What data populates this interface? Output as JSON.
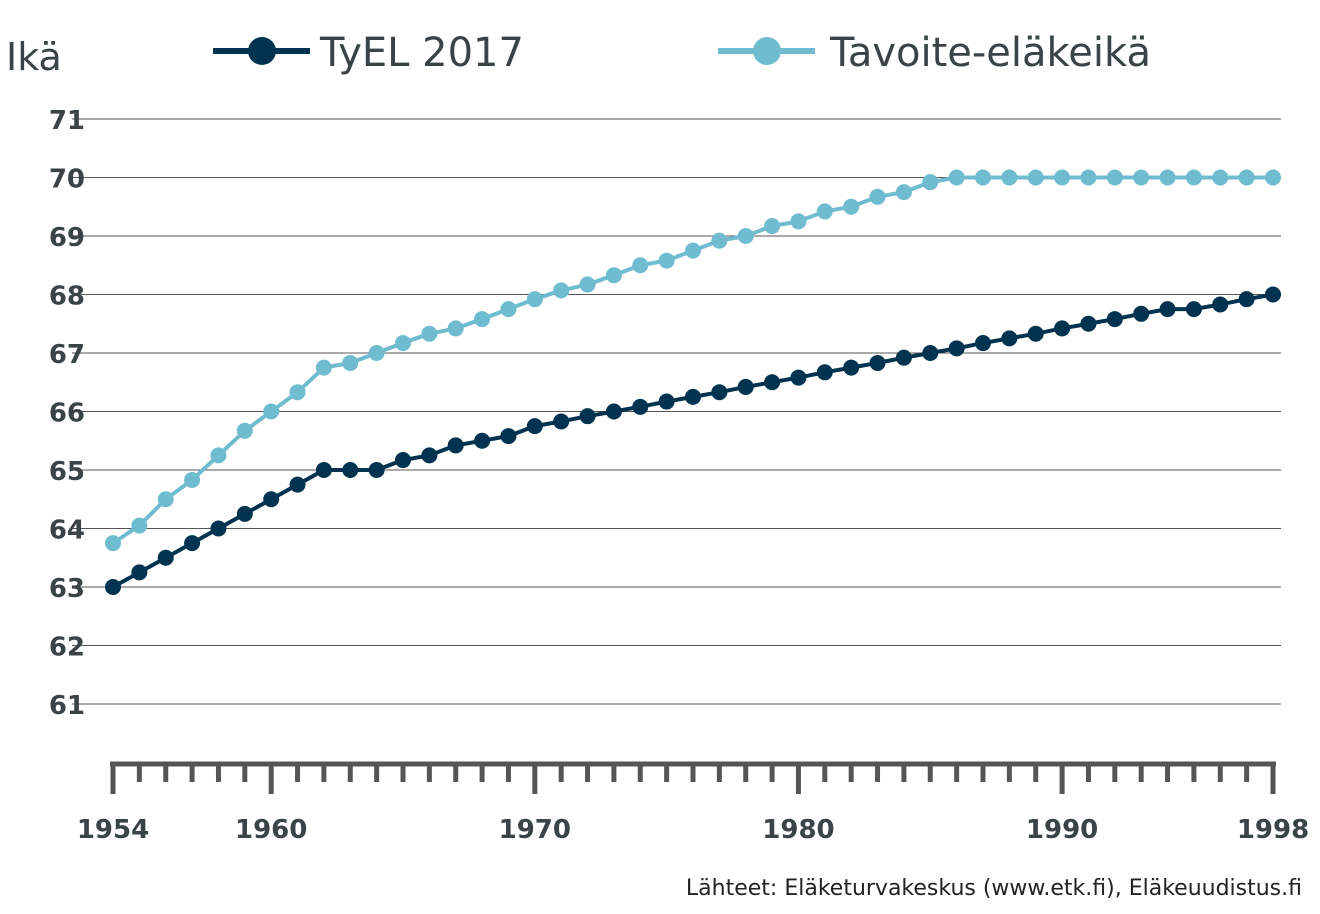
{
  "chart_data": {
    "type": "line",
    "ylabel": "Ikä",
    "ylim": [
      61,
      71
    ],
    "yticks": [
      "61",
      "62",
      "63",
      "64",
      "65",
      "66",
      "67",
      "68",
      "69",
      "70",
      "71"
    ],
    "xlim": [
      1954,
      1998
    ],
    "xticks": [
      "1954",
      "1960",
      "1970",
      "1980",
      "1990",
      "1998"
    ],
    "grid": true,
    "legend_position": "top",
    "source": "Lähteet: Eläketurvakeskus (www.etk.fi), Eläkeuudistus.fi",
    "x": [
      1954,
      1955,
      1956,
      1957,
      1958,
      1959,
      1960,
      1961,
      1962,
      1963,
      1964,
      1965,
      1966,
      1967,
      1968,
      1969,
      1970,
      1971,
      1972,
      1973,
      1974,
      1975,
      1976,
      1977,
      1978,
      1979,
      1980,
      1981,
      1982,
      1983,
      1984,
      1985,
      1986,
      1987,
      1988,
      1989,
      1990,
      1991,
      1992,
      1993,
      1994,
      1995,
      1996,
      1997,
      1998
    ],
    "series": [
      {
        "name": "TyEL 2017",
        "color": "#00334f",
        "values": [
          63,
          63.25,
          63.5,
          63.75,
          64,
          64.25,
          64.5,
          64.75,
          65,
          65,
          65,
          65.17,
          65.25,
          65.42,
          65.5,
          65.58,
          65.75,
          65.83,
          65.92,
          66,
          66.08,
          66.17,
          66.25,
          66.33,
          66.42,
          66.5,
          66.58,
          66.67,
          66.75,
          66.83,
          66.92,
          67,
          67.08,
          67.17,
          67.25,
          67.33,
          67.42,
          67.5,
          67.58,
          67.67,
          67.75,
          67.75,
          67.83,
          67.92,
          68
        ]
      },
      {
        "name": "Tavoite-eläkeikä",
        "color": "#6fbcd1",
        "values": [
          63.75,
          64.05,
          64.5,
          64.83,
          65.25,
          65.67,
          66,
          66.33,
          66.75,
          66.83,
          67,
          67.17,
          67.33,
          67.42,
          67.58,
          67.75,
          67.92,
          68.07,
          68.17,
          68.33,
          68.5,
          68.58,
          68.75,
          68.92,
          69,
          69.17,
          69.25,
          69.42,
          69.5,
          69.67,
          69.75,
          69.92,
          70,
          70,
          70,
          70,
          70,
          70,
          70,
          70,
          70,
          70,
          70,
          70,
          70
        ]
      }
    ]
  }
}
